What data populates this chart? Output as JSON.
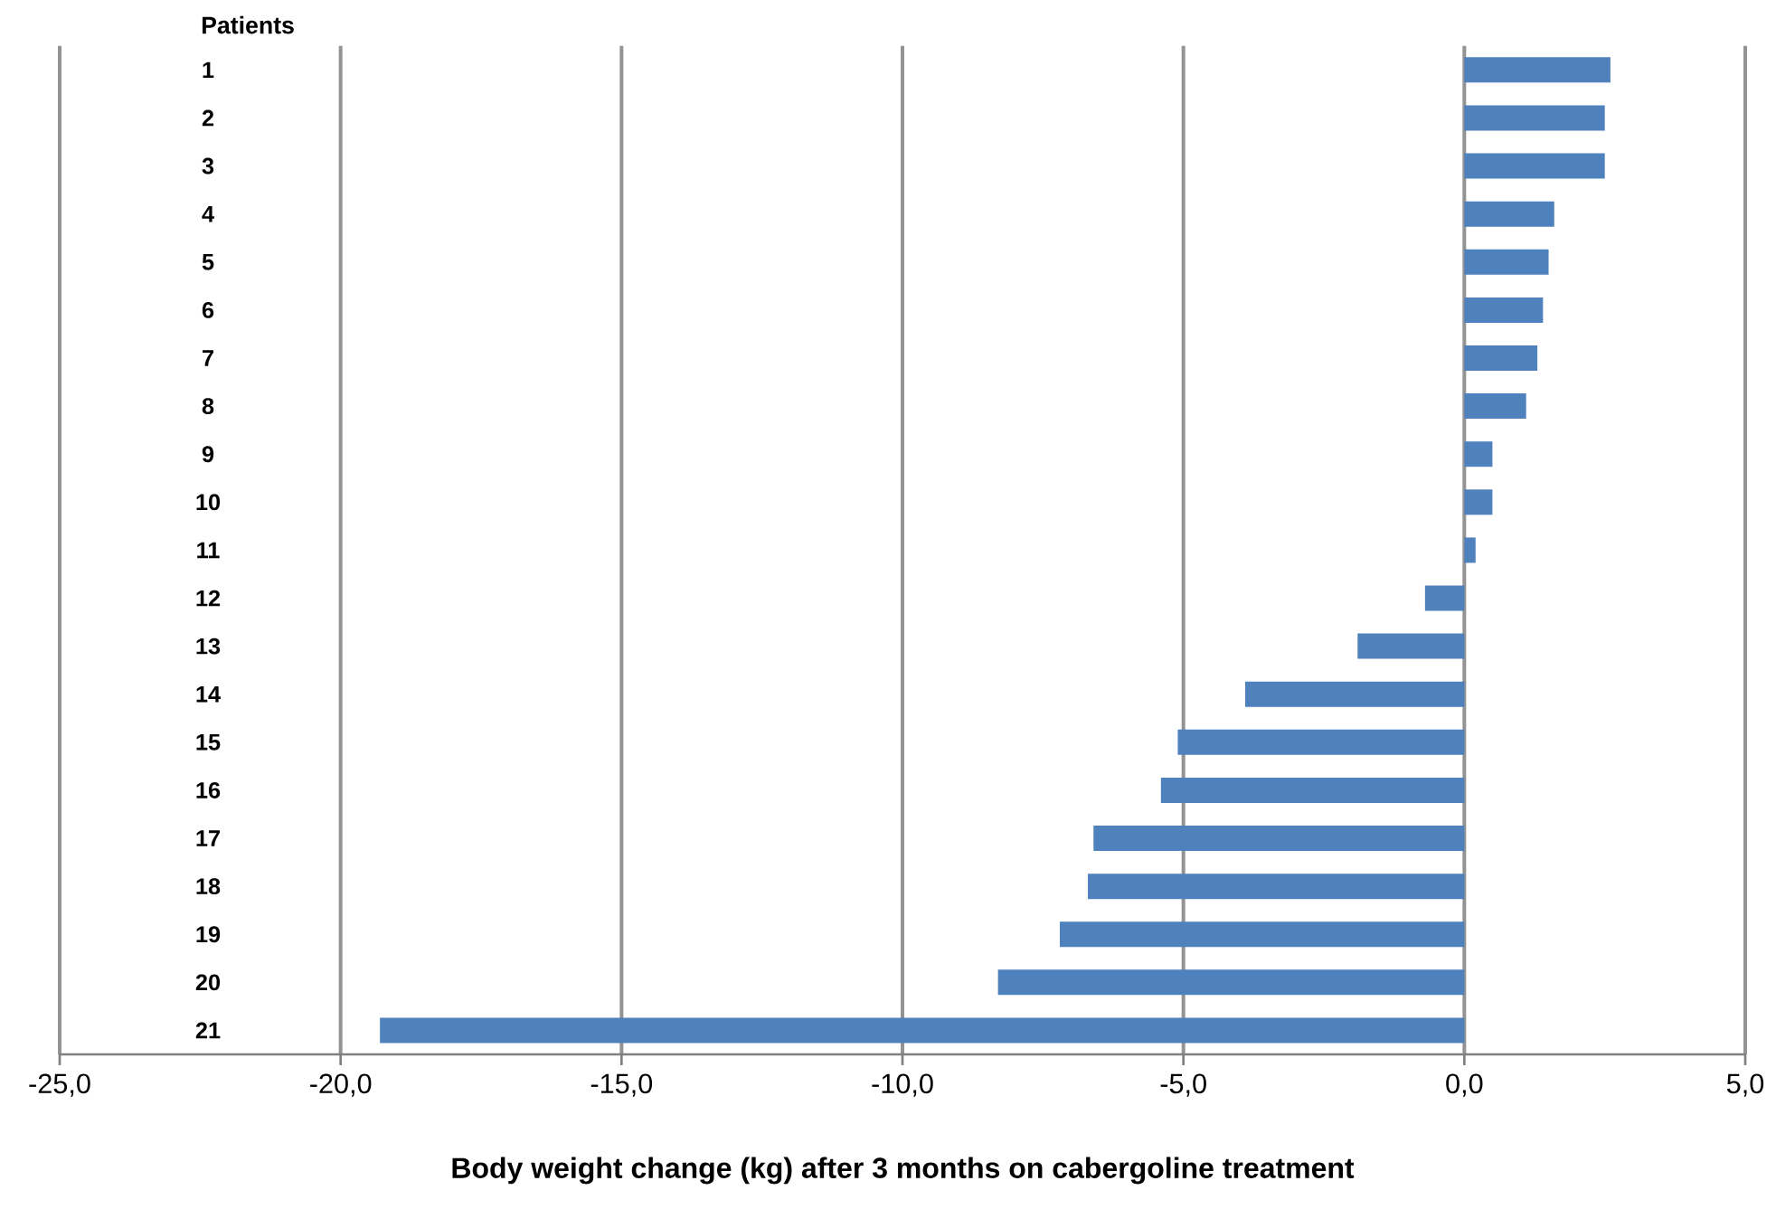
{
  "chart_data": {
    "type": "bar",
    "orientation": "horizontal",
    "ylabel": "Patients",
    "xlabel": "Body weight change (kg) after 3 months on cabergoline treatment",
    "categories": [
      "1",
      "2",
      "3",
      "4",
      "5",
      "6",
      "7",
      "8",
      "9",
      "10",
      "11",
      "12",
      "13",
      "14",
      "15",
      "16",
      "17",
      "18",
      "19",
      "20",
      "21"
    ],
    "values": [
      2.6,
      2.5,
      2.5,
      1.6,
      1.5,
      1.4,
      1.3,
      1.1,
      0.5,
      0.5,
      0.2,
      -0.7,
      -1.9,
      -3.9,
      -5.1,
      -5.4,
      -6.6,
      -6.7,
      -7.2,
      -8.3,
      -19.3
    ],
    "color": "#4f81bd",
    "xlim": [
      -25,
      5
    ],
    "xticks": [
      {
        "value": -25,
        "label": "-25,0"
      },
      {
        "value": -20,
        "label": "-20,0"
      },
      {
        "value": -15,
        "label": "-15,0"
      },
      {
        "value": -10,
        "label": "-10,0"
      },
      {
        "value": -5,
        "label": "-5,0"
      },
      {
        "value": 0,
        "label": "0,0"
      },
      {
        "value": 5,
        "label": "5,0"
      }
    ],
    "grid": "x"
  }
}
